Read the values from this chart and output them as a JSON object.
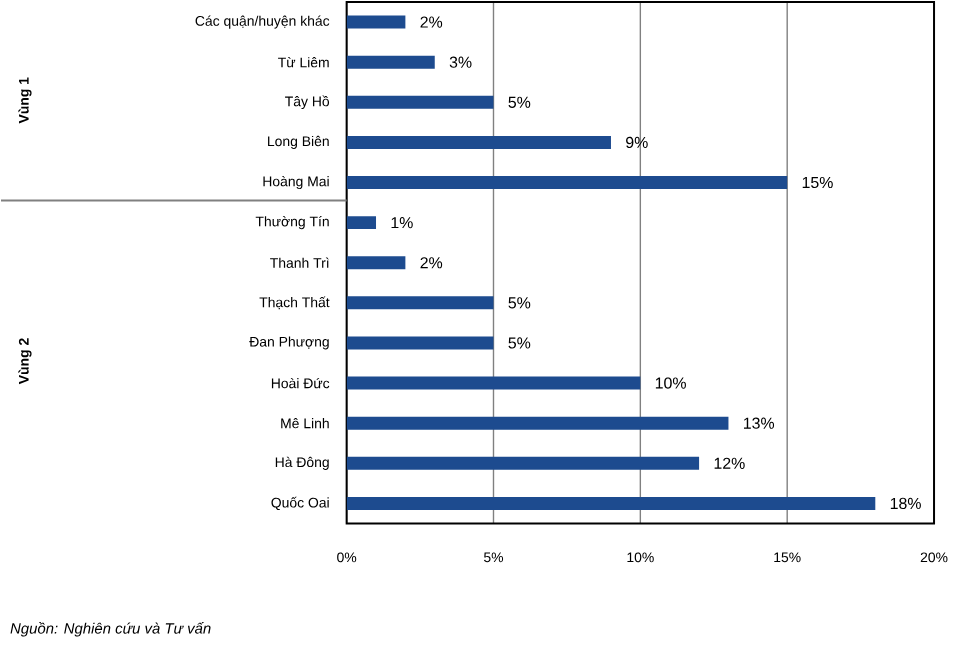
{
  "chart_data": {
    "type": "bar",
    "orientation": "horizontal",
    "categories": [
      "Các quận/huyện khác",
      "Từ Liêm",
      "Tây Hồ",
      "Long Biên",
      "Hoàng Mai",
      "Thường Tín",
      "Thanh Trì",
      "Thạch Thất",
      "Đan Phượng",
      "Hoài Đức",
      "Mê Linh",
      "Hà Đông",
      "Quốc Oai"
    ],
    "values": [
      2,
      3,
      5,
      9,
      15,
      1,
      2,
      5,
      5,
      10,
      13,
      12,
      18
    ],
    "value_labels": [
      "2%",
      "3%",
      "5%",
      "9%",
      "15%",
      "1%",
      "2%",
      "5%",
      "5%",
      "10%",
      "13%",
      "12%",
      "18%"
    ],
    "color": "#1d4b8f",
    "xlim": [
      0,
      20
    ],
    "xticks": [
      {
        "value": 0,
        "label": "0%"
      },
      {
        "value": 5,
        "label": "5%"
      },
      {
        "value": 10,
        "label": "10%"
      },
      {
        "value": 15,
        "label": "15%"
      },
      {
        "value": 20,
        "label": "20%"
      }
    ],
    "grid": "x",
    "annotations": [
      "Vùng 1",
      "Vùng 2",
      "Nguồn: Nghiên cứu và Tư vấn"
    ]
  }
}
